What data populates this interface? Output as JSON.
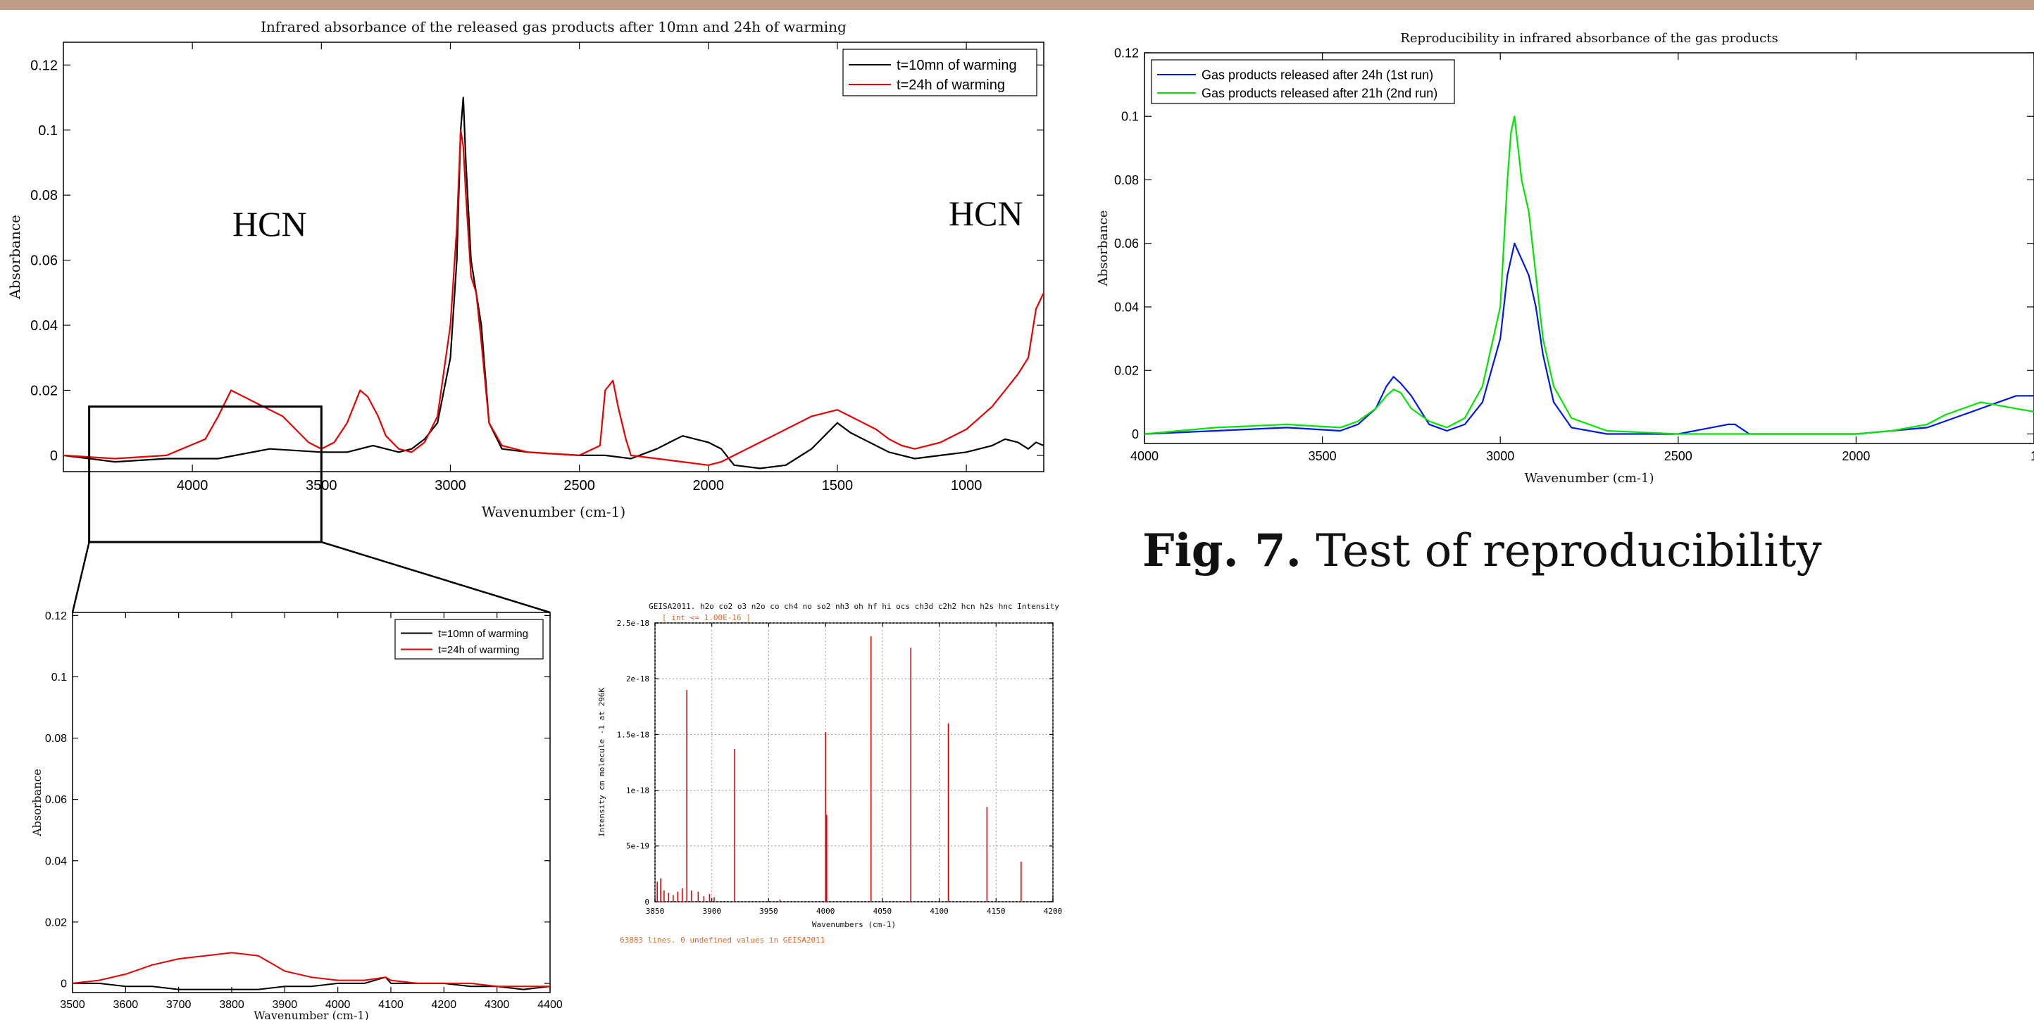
{
  "caption": {
    "bold": "Fig. 7.",
    "text": " Test of reproducibility"
  },
  "colors": {
    "black": "#000000",
    "red": "#e60000",
    "blue": "#0018e6",
    "green": "#00e600",
    "orange": "#e06a2a"
  },
  "chart_data": [
    {
      "id": "main",
      "type": "line",
      "title": "Infrared absorbance of the released gas products after 10mn and 24h of warming",
      "xlabel": "Wavenumber (cm-1)",
      "ylabel": "Absorbance",
      "xlim": [
        4500,
        700
      ],
      "ylim": [
        -0.005,
        0.127
      ],
      "xticks": [
        "4000",
        "3500",
        "3000",
        "2500",
        "2000",
        "1500",
        "1000"
      ],
      "yticks": [
        "0",
        "0.02",
        "0.04",
        "0.06",
        "0.08",
        "0.1",
        "0.12"
      ],
      "legend": "top-right",
      "annotations": [
        "HCN",
        "HCN"
      ],
      "series": [
        {
          "name": "t=10mn of warming",
          "color": "#000000",
          "x": [
            4500,
            4300,
            4100,
            3900,
            3700,
            3500,
            3400,
            3300,
            3200,
            3150,
            3100,
            3050,
            3000,
            2975,
            2960,
            2950,
            2940,
            2920,
            2900,
            2880,
            2850,
            2800,
            2700,
            2500,
            2400,
            2300,
            2200,
            2150,
            2100,
            2050,
            2000,
            1950,
            1900,
            1800,
            1700,
            1600,
            1500,
            1450,
            1400,
            1300,
            1200,
            1100,
            1000,
            900,
            850,
            800,
            760,
            730,
            700
          ],
          "y": [
            0,
            -0.002,
            -0.001,
            -0.001,
            0.002,
            0.001,
            0.001,
            0.003,
            0.001,
            0.002,
            0.005,
            0.01,
            0.03,
            0.06,
            0.1,
            0.11,
            0.09,
            0.06,
            0.05,
            0.04,
            0.01,
            0.002,
            0.001,
            0,
            0,
            -0.001,
            0.002,
            0.004,
            0.006,
            0.005,
            0.004,
            0.002,
            -0.003,
            -0.004,
            -0.003,
            0.002,
            0.01,
            0.007,
            0.005,
            0.001,
            -0.001,
            0,
            0.001,
            0.003,
            0.005,
            0.004,
            0.002,
            0.004,
            0.003
          ]
        },
        {
          "name": "t=24h of warming",
          "color": "#e60000",
          "x": [
            4500,
            4300,
            4100,
            3950,
            3900,
            3850,
            3800,
            3750,
            3700,
            3650,
            3600,
            3550,
            3500,
            3450,
            3400,
            3370,
            3350,
            3320,
            3300,
            3280,
            3250,
            3200,
            3150,
            3100,
            3050,
            3000,
            2975,
            2960,
            2950,
            2940,
            2920,
            2900,
            2880,
            2850,
            2800,
            2700,
            2500,
            2420,
            2400,
            2370,
            2350,
            2320,
            2300,
            2200,
            2100,
            2000,
            1950,
            1900,
            1850,
            1800,
            1750,
            1700,
            1650,
            1600,
            1550,
            1500,
            1450,
            1400,
            1350,
            1300,
            1250,
            1200,
            1100,
            1000,
            900,
            850,
            800,
            760,
            730,
            700
          ],
          "y": [
            0,
            -0.001,
            0,
            0.005,
            0.012,
            0.02,
            0.018,
            0.016,
            0.014,
            0.012,
            0.008,
            0.004,
            0.002,
            0.004,
            0.01,
            0.016,
            0.02,
            0.018,
            0.015,
            0.012,
            0.006,
            0.002,
            0.001,
            0.004,
            0.012,
            0.04,
            0.07,
            0.1,
            0.095,
            0.08,
            0.055,
            0.05,
            0.035,
            0.01,
            0.003,
            0.001,
            0,
            0.003,
            0.02,
            0.023,
            0.015,
            0.005,
            0,
            -0.001,
            -0.002,
            -0.003,
            -0.002,
            0,
            0.002,
            0.004,
            0.006,
            0.008,
            0.01,
            0.012,
            0.013,
            0.014,
            0.012,
            0.01,
            0.008,
            0.005,
            0.003,
            0.002,
            0.004,
            0.008,
            0.015,
            0.02,
            0.025,
            0.03,
            0.045,
            0.05
          ]
        }
      ]
    },
    {
      "id": "zoom",
      "type": "line",
      "xlabel": "Wavenumber (cm-1)",
      "ylabel": "Absorbance",
      "xlim": [
        3500,
        4400
      ],
      "ylim": [
        -0.003,
        0.121
      ],
      "xticks": [
        "3500",
        "3600",
        "3700",
        "3800",
        "3900",
        "4000",
        "4100",
        "4200",
        "4300",
        "4400"
      ],
      "yticks": [
        "0",
        "0.02",
        "0.04",
        "0.06",
        "0.08",
        "0.1",
        "0.12"
      ],
      "legend": "top-right",
      "series": [
        {
          "name": "t=10mn of warming",
          "color": "#000000",
          "x": [
            3500,
            3550,
            3600,
            3650,
            3700,
            3750,
            3800,
            3850,
            3900,
            3950,
            4000,
            4050,
            4090,
            4100,
            4150,
            4200,
            4250,
            4300,
            4350,
            4400
          ],
          "y": [
            0,
            0,
            -0.001,
            -0.001,
            -0.002,
            -0.002,
            -0.002,
            -0.002,
            -0.001,
            -0.001,
            0,
            0,
            0.002,
            0,
            0,
            0,
            -0.001,
            -0.001,
            -0.002,
            -0.001
          ]
        },
        {
          "name": "t=24h of warming",
          "color": "#e60000",
          "x": [
            3500,
            3550,
            3600,
            3650,
            3700,
            3750,
            3800,
            3850,
            3880,
            3900,
            3950,
            4000,
            4050,
            4090,
            4100,
            4150,
            4200,
            4250,
            4300,
            4350,
            4400
          ],
          "y": [
            0,
            0.001,
            0.003,
            0.006,
            0.008,
            0.009,
            0.01,
            0.009,
            0.006,
            0.004,
            0.002,
            0.001,
            0.001,
            0.002,
            0.001,
            0,
            0,
            0,
            -0.001,
            -0.001,
            -0.001
          ]
        }
      ]
    },
    {
      "id": "geisa",
      "type": "bar",
      "title": "GEISA2011.  h2o co2 o3 n2o co ch4 no so2 nh3 oh hf hi ocs ch3d c2h2 hcn h2s hnc Intensity",
      "subtitle": "[ int <= 1.00E-16 ]",
      "xlabel": "Wavenumbers (cm-1)",
      "ylabel": "Intensity cm molecule -1 at 296K",
      "xlim": [
        3850,
        4200
      ],
      "ylim": [
        0,
        2.5e-18
      ],
      "xticks": [
        "3850",
        "3900",
        "3950",
        "4000",
        "4050",
        "4100",
        "4150",
        "4200"
      ],
      "yticks": [
        "0",
        "5e-19",
        "1e-18",
        "1.5e-18",
        "2e-18",
        "2.5e-18"
      ],
      "grid": true,
      "footer": "63883 lines.        0 undefined values in GEISA2011",
      "x": [
        3852,
        3855,
        3858,
        3862,
        3866,
        3870,
        3874,
        3878,
        3882,
        3888,
        3893,
        3898,
        3902,
        3920,
        3960,
        4000,
        4001,
        4040,
        4075,
        4108,
        4142,
        4172
      ],
      "y": [
        1.8e-19,
        2.1e-19,
        1e-19,
        8e-20,
        6e-20,
        9e-20,
        1.2e-19,
        1.9e-18,
        1e-19,
        9e-20,
        5e-20,
        7e-20,
        4e-20,
        1.37e-18,
        2e-20,
        1.52e-18,
        7.8e-19,
        2.38e-18,
        2.28e-18,
        1.6e-18,
        8.5e-19,
        3.6e-19
      ]
    },
    {
      "id": "repro",
      "type": "line",
      "title": "Reproducibility in infrared absorbance of the gas products",
      "xlabel": "Wavenumber (cm-1)",
      "ylabel": "Absorbance",
      "xlim": [
        4000,
        1500
      ],
      "ylim": [
        -0.003,
        0.12
      ],
      "xticks": [
        "4000",
        "3500",
        "3000",
        "2500",
        "2000",
        "1"
      ],
      "yticks": [
        "0",
        "0.02",
        "0.04",
        "0.06",
        "0.08",
        "0.1",
        "0.12"
      ],
      "legend": "top-left",
      "series": [
        {
          "name": "Gas products released after 24h (1st run)",
          "color": "#0018e6",
          "x": [
            4000,
            3800,
            3600,
            3450,
            3400,
            3350,
            3320,
            3300,
            3280,
            3250,
            3200,
            3150,
            3100,
            3050,
            3000,
            2980,
            2960,
            2940,
            2920,
            2900,
            2880,
            2850,
            2800,
            2700,
            2500,
            2360,
            2340,
            2300,
            2100,
            2000,
            1900,
            1800,
            1750,
            1700,
            1650,
            1600,
            1550,
            1500
          ],
          "y": [
            0,
            0.001,
            0.002,
            0.001,
            0.003,
            0.008,
            0.015,
            0.018,
            0.016,
            0.012,
            0.003,
            0.001,
            0.003,
            0.01,
            0.03,
            0.05,
            0.06,
            0.055,
            0.05,
            0.04,
            0.025,
            0.01,
            0.002,
            0,
            0,
            0.003,
            0.003,
            0,
            0,
            0,
            0.001,
            0.002,
            0.004,
            0.006,
            0.008,
            0.01,
            0.012,
            0.012
          ]
        },
        {
          "name": "Gas products released after 21h (2nd run)",
          "color": "#00e600",
          "x": [
            4000,
            3800,
            3600,
            3450,
            3400,
            3350,
            3320,
            3300,
            3280,
            3250,
            3200,
            3150,
            3100,
            3050,
            3000,
            2990,
            2980,
            2970,
            2960,
            2950,
            2940,
            2920,
            2900,
            2880,
            2850,
            2800,
            2700,
            2500,
            2300,
            2100,
            2000,
            1900,
            1800,
            1750,
            1700,
            1650,
            1600,
            1550,
            1500
          ],
          "y": [
            0,
            0.002,
            0.003,
            0.002,
            0.004,
            0.008,
            0.012,
            0.014,
            0.013,
            0.008,
            0.004,
            0.002,
            0.005,
            0.015,
            0.04,
            0.06,
            0.08,
            0.095,
            0.1,
            0.09,
            0.08,
            0.07,
            0.05,
            0.03,
            0.015,
            0.005,
            0.001,
            0,
            0,
            0,
            0,
            0.001,
            0.003,
            0.006,
            0.008,
            0.01,
            0.009,
            0.008,
            0.007
          ]
        }
      ]
    }
  ]
}
